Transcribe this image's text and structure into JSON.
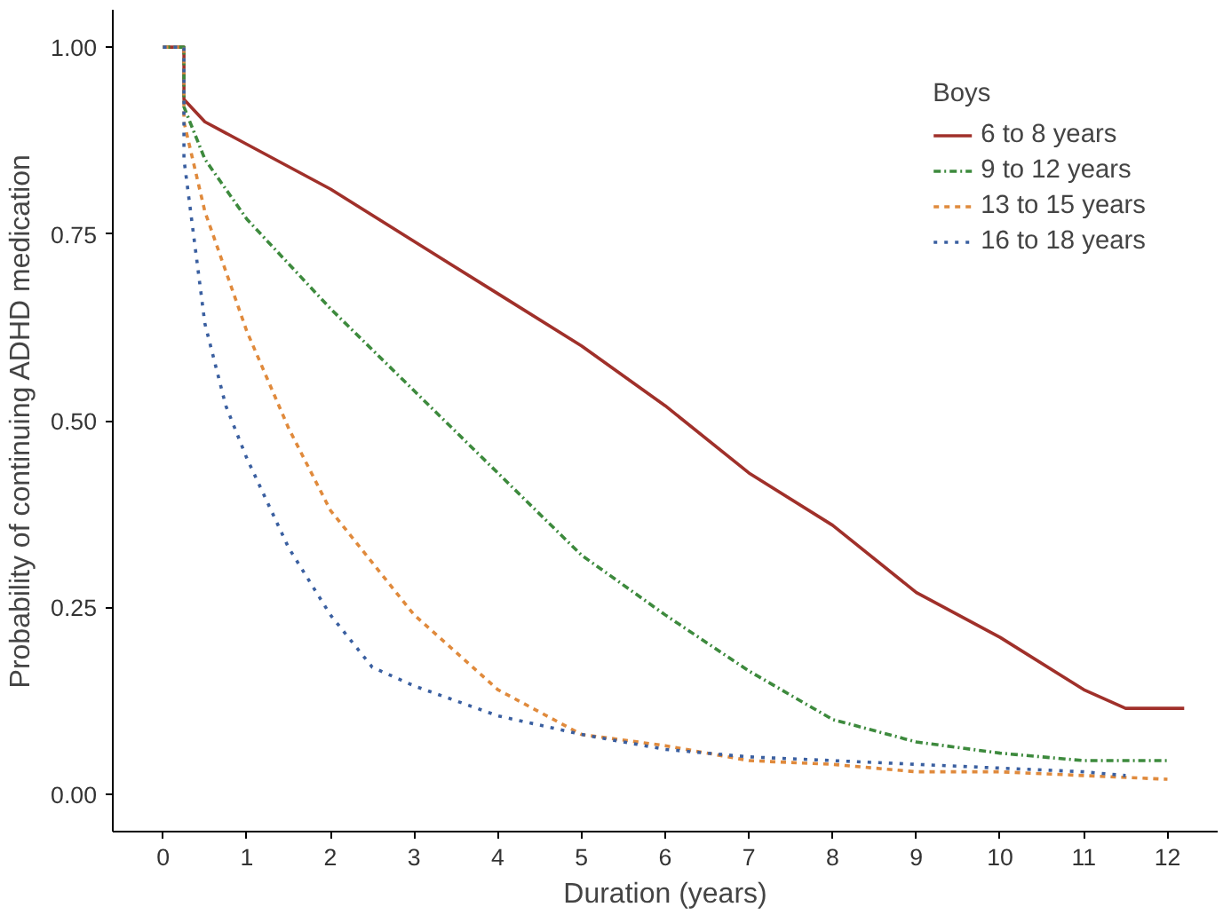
{
  "chart_data": {
    "type": "line",
    "xlabel": "Duration (years)",
    "ylabel": "Probability of continuing ADHD medication",
    "legend_title": "Boys",
    "xlim": [
      -0.6,
      12.6
    ],
    "ylim": [
      -0.05,
      1.05
    ],
    "xticks": [
      0,
      1,
      2,
      3,
      4,
      5,
      6,
      7,
      8,
      9,
      10,
      11,
      12
    ],
    "yticks": [
      {
        "value": 0,
        "label": "0.00"
      },
      {
        "value": 0.25,
        "label": "0.25"
      },
      {
        "value": 0.5,
        "label": "0.50"
      },
      {
        "value": 0.75,
        "label": "0.75"
      },
      {
        "value": 1,
        "label": "1.00"
      }
    ],
    "grid": false,
    "legend": "top right",
    "series": [
      {
        "name": "6 to 8 years",
        "color": "#a0302a",
        "line_style": "solid",
        "x": [
          0,
          0.25,
          0.25,
          0.5,
          1,
          2,
          3,
          4,
          5,
          6,
          7,
          8,
          9,
          10,
          11,
          11.5,
          12.2
        ],
        "values": [
          1,
          1,
          0.93,
          0.9,
          0.87,
          0.81,
          0.74,
          0.67,
          0.6,
          0.52,
          0.43,
          0.36,
          0.27,
          0.21,
          0.14,
          0.115,
          0.115
        ]
      },
      {
        "name": "9 to 12 years",
        "color": "#3d8a3d",
        "line_style": "dashdot",
        "x": [
          0,
          0.25,
          0.25,
          0.5,
          1,
          1.5,
          2,
          3,
          4,
          5,
          6,
          7,
          8,
          9,
          10,
          11,
          12
        ],
        "values": [
          1,
          1,
          0.92,
          0.85,
          0.77,
          0.71,
          0.65,
          0.54,
          0.43,
          0.32,
          0.24,
          0.165,
          0.1,
          0.07,
          0.055,
          0.045,
          0.045
        ]
      },
      {
        "name": "13 to 15 years",
        "color": "#e08a3c",
        "line_style": "dashed",
        "x": [
          0,
          0.25,
          0.25,
          0.5,
          1,
          1.5,
          2,
          3,
          4,
          5,
          6,
          7,
          8,
          9,
          10,
          11,
          12
        ],
        "values": [
          1,
          1,
          0.9,
          0.78,
          0.62,
          0.49,
          0.38,
          0.24,
          0.14,
          0.08,
          0.065,
          0.045,
          0.04,
          0.03,
          0.03,
          0.025,
          0.02
        ]
      },
      {
        "name": "16 to 18 years",
        "color": "#3a5fa0",
        "line_style": "dotted",
        "x": [
          0,
          0.25,
          0.25,
          0.5,
          0.75,
          1,
          1.5,
          2,
          2.5,
          3,
          4,
          5,
          6,
          7,
          8,
          9,
          10,
          11,
          11.5
        ],
        "values": [
          1,
          1,
          0.85,
          0.63,
          0.52,
          0.45,
          0.33,
          0.24,
          0.17,
          0.145,
          0.105,
          0.08,
          0.06,
          0.05,
          0.045,
          0.04,
          0.035,
          0.03,
          0.025
        ]
      }
    ]
  }
}
